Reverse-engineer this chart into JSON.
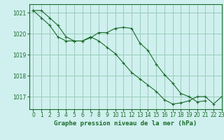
{
  "title": "Graphe pression niveau de la mer (hPa)",
  "background_color": "#cff0ee",
  "grid_color": "#99ccbb",
  "line_color": "#1a6b2a",
  "xlim": [
    -0.5,
    23
  ],
  "ylim": [
    1016.4,
    1021.4
  ],
  "yticks": [
    1017,
    1018,
    1019,
    1020,
    1021
  ],
  "xticks": [
    0,
    1,
    2,
    3,
    4,
    5,
    6,
    7,
    8,
    9,
    10,
    11,
    12,
    13,
    14,
    15,
    16,
    17,
    18,
    19,
    20,
    21,
    22,
    23
  ],
  "series1_x": [
    0,
    1,
    2,
    3,
    4,
    5,
    6,
    7,
    8,
    9,
    10,
    11,
    12,
    13,
    14,
    15,
    16,
    17,
    18,
    19,
    20,
    21,
    22,
    23
  ],
  "series1_y": [
    1021.1,
    1021.1,
    1020.75,
    1020.4,
    1019.85,
    1019.65,
    1019.65,
    1019.85,
    1019.65,
    1019.35,
    1019.05,
    1018.6,
    1018.15,
    1017.85,
    1017.55,
    1017.25,
    1016.85,
    1016.65,
    1016.7,
    1016.8,
    1017.0,
    1017.0,
    1016.65,
    1017.0
  ],
  "series2_x": [
    0,
    1,
    2,
    3,
    4,
    5,
    6,
    7,
    8,
    9,
    10,
    11,
    12,
    13,
    14,
    15,
    16,
    17,
    18,
    19,
    20,
    21
  ],
  "series2_y": [
    1021.1,
    1020.75,
    1020.4,
    1019.85,
    1019.65,
    1019.65,
    1019.65,
    1019.8,
    1020.05,
    1020.05,
    1020.25,
    1020.3,
    1020.25,
    1019.55,
    1019.2,
    1018.55,
    1018.05,
    1017.65,
    1017.15,
    1017.0,
    1016.75,
    1016.8
  ],
  "tick_fontsize": 5.5,
  "title_fontsize": 6.5,
  "spine_color": "#1a6b2a"
}
